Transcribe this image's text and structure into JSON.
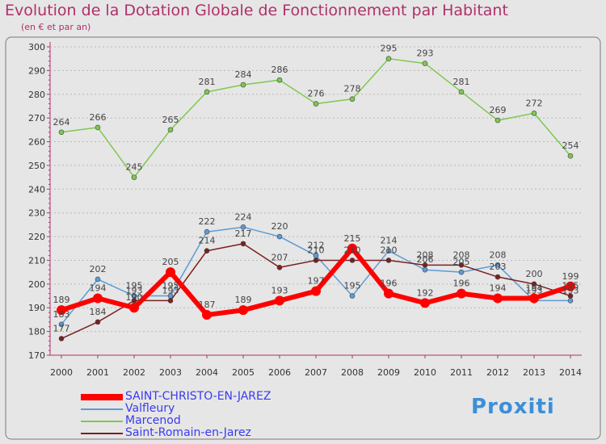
{
  "title": "Evolution de la Dotation Globale de Fonctionnement par Habitant",
  "subtitle": "(en € et par an)",
  "brand": "Proxiti",
  "chart_data": {
    "type": "line",
    "title": "Evolution de la Dotation Globale de Fonctionnement par Habitant",
    "subtitle": "(en € et par an)",
    "x": [
      "2000",
      "2001",
      "2002",
      "2003",
      "2004",
      "2005",
      "2006",
      "2007",
      "2008",
      "2009",
      "2010",
      "2011",
      "2012",
      "2013",
      "2014"
    ],
    "ylim": [
      170,
      300
    ],
    "yticks": [
      170,
      180,
      190,
      200,
      210,
      220,
      230,
      240,
      250,
      260,
      270,
      280,
      290,
      300
    ],
    "grid": "horizontal dashed",
    "legend": "bottom-left",
    "series": [
      {
        "name": "SAINT-CHRISTO-EN-JAREZ",
        "color": "#ff0000",
        "values": [
          189,
          194,
          190,
          205,
          187,
          189,
          193,
          197,
          215,
          196,
          192,
          196,
          194,
          194,
          199
        ]
      },
      {
        "name": "Valfleury",
        "color": "#5b9bd5",
        "values": [
          183,
          202,
          195,
          195,
          222,
          224,
          220,
          212,
          195,
          214,
          206,
          205,
          208,
          193,
          193
        ]
      },
      {
        "name": "Marcenod",
        "color": "#7ec850",
        "values": [
          264,
          266,
          245,
          265,
          281,
          284,
          286,
          276,
          278,
          295,
          293,
          281,
          269,
          272,
          254
        ]
      },
      {
        "name": "Saint-Romain-en-Jarez",
        "color": "#7a2020",
        "values": [
          177,
          184,
          193,
          193,
          214,
          217,
          207,
          210,
          210,
          210,
          208,
          208,
          203,
          200,
          195
        ]
      }
    ]
  }
}
